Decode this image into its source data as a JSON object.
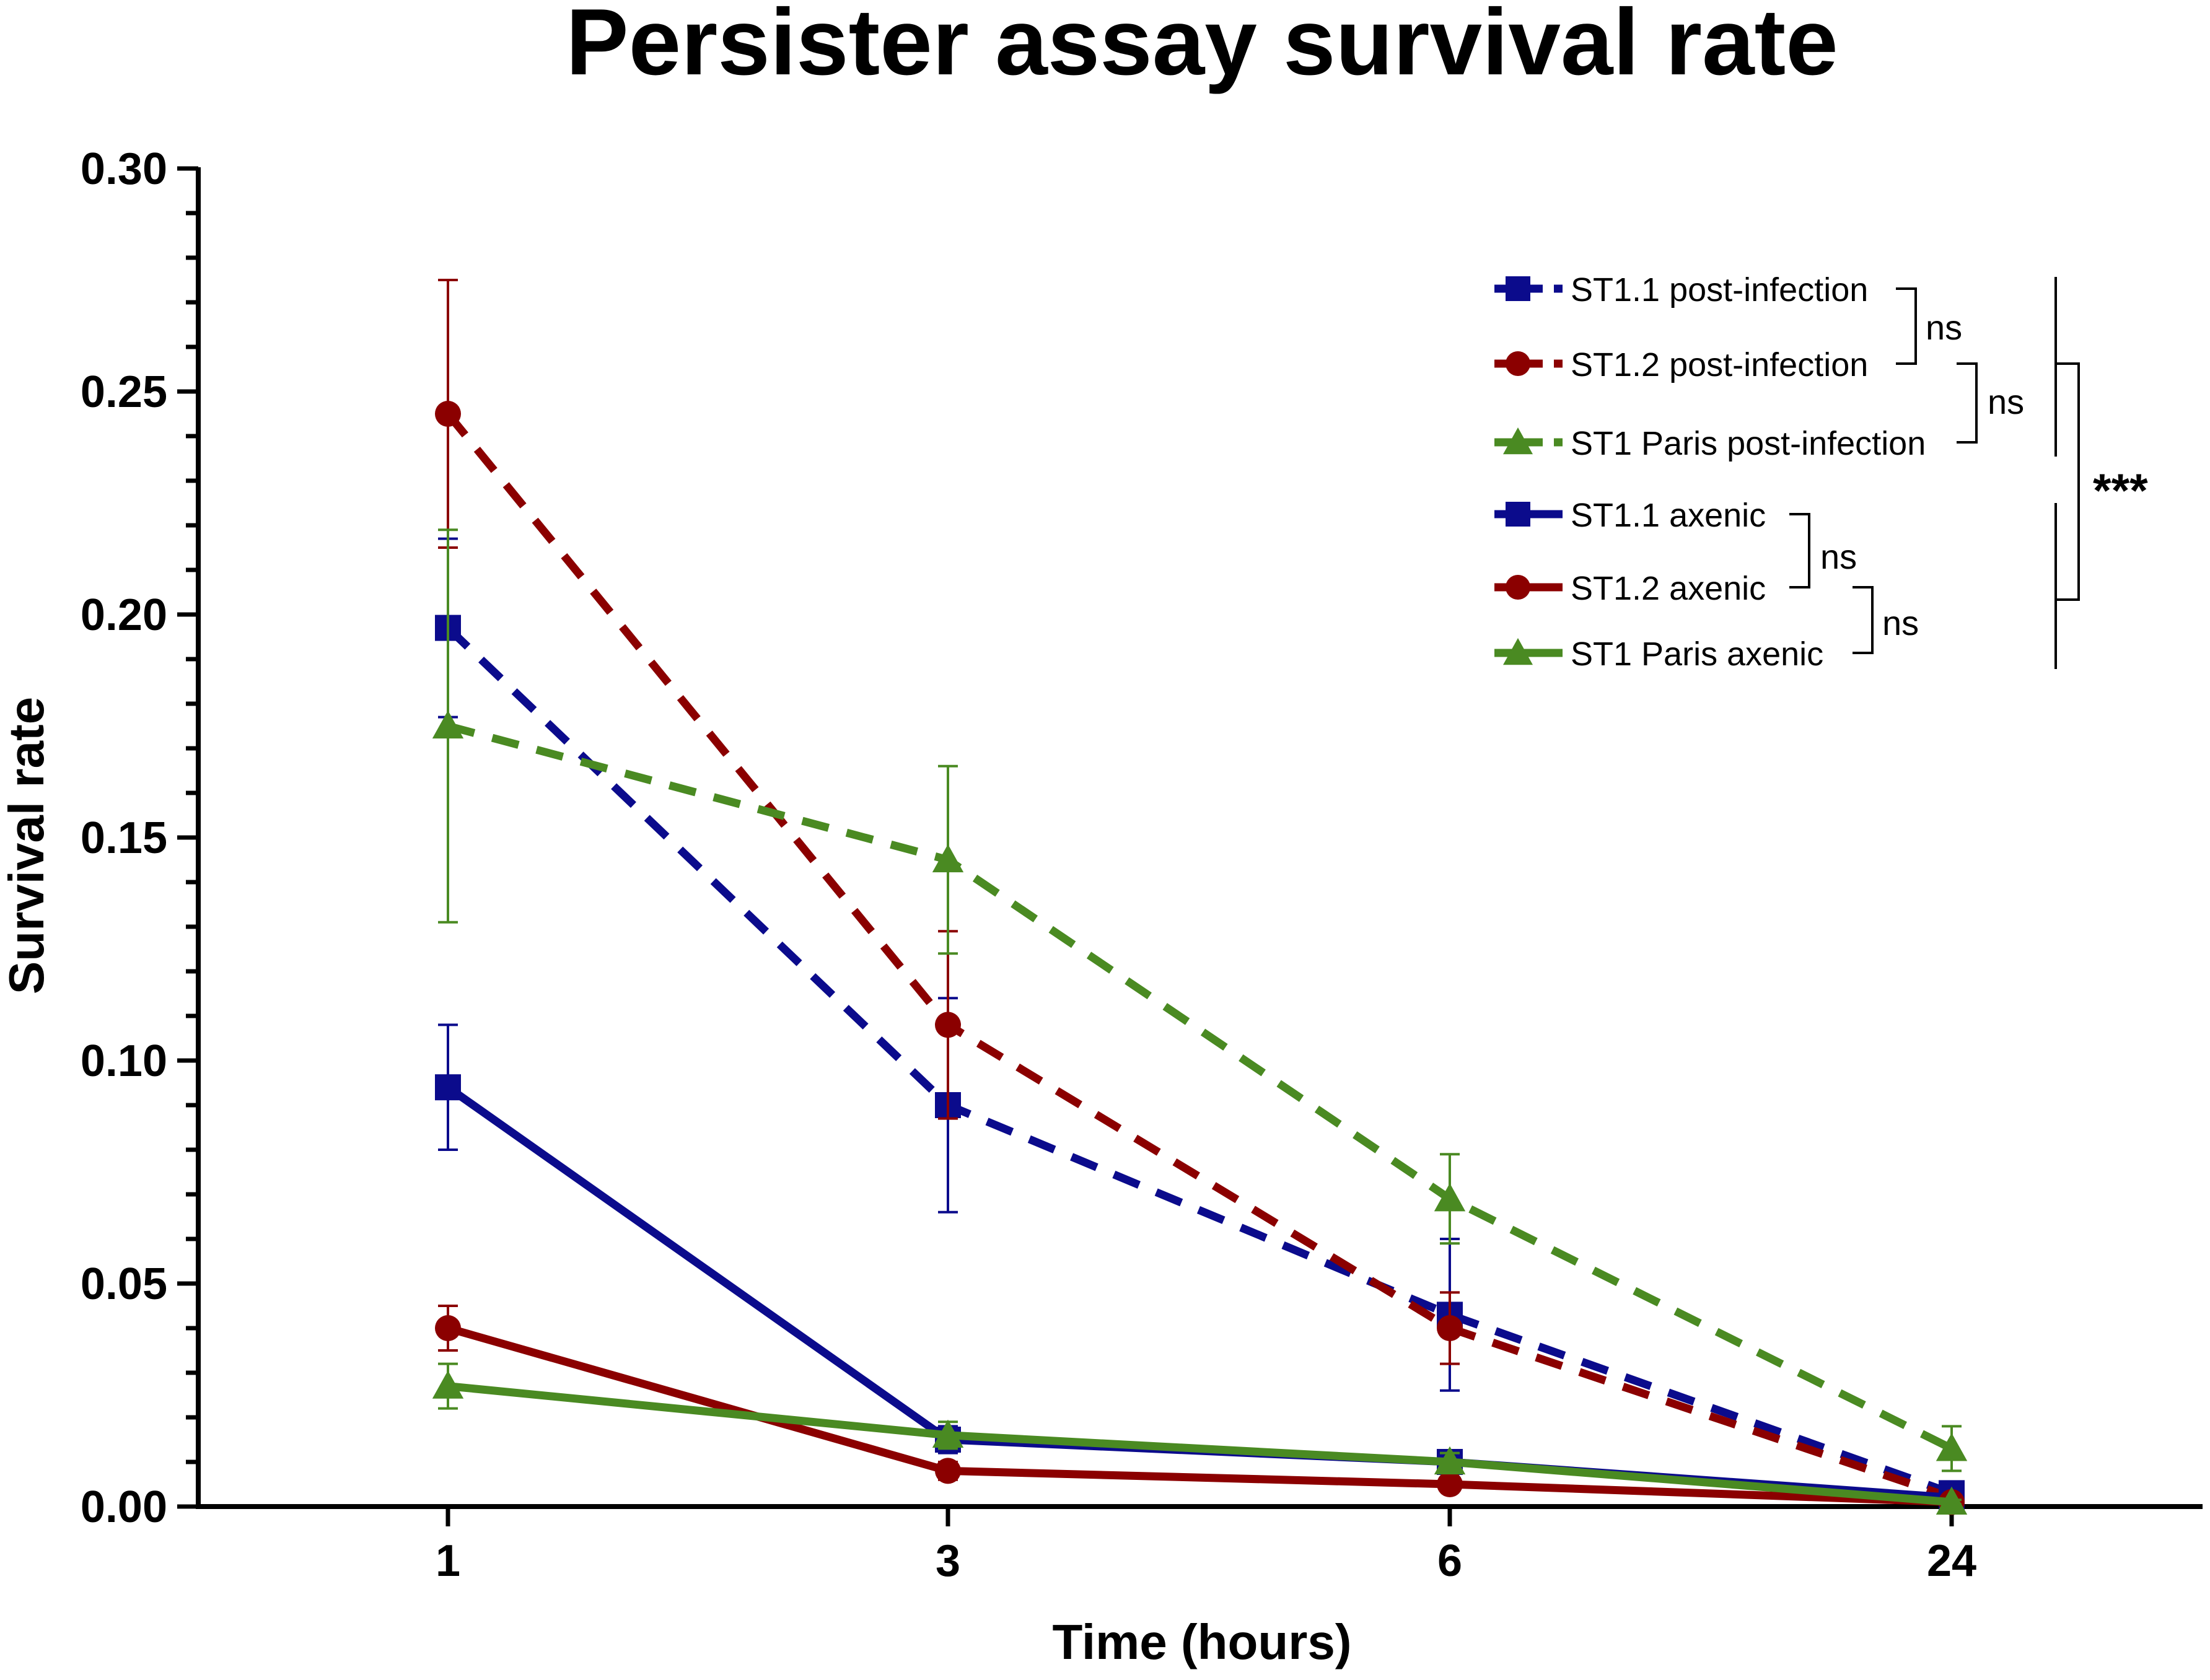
{
  "chart_data": {
    "type": "line",
    "title": "Persister assay survival rate",
    "xlabel": "Time (hours)",
    "ylabel": "Survival rate",
    "categories": [
      "1",
      "3",
      "6",
      "24"
    ],
    "ylim": [
      0,
      0.3
    ],
    "yticks": [
      "0.00",
      "0.05",
      "0.10",
      "0.15",
      "0.20",
      "0.25",
      "0.30"
    ],
    "ytick_values": [
      0,
      0.05,
      0.1,
      0.15,
      0.2,
      0.25,
      0.3
    ],
    "grid": false,
    "legend_position": "top-right",
    "series": [
      {
        "name": "ST1.1 post-infection",
        "color": "#0b0b8c",
        "dash": "dashed",
        "marker": "square",
        "values": [
          0.197,
          0.09,
          0.043,
          0.003
        ],
        "errors": [
          0.02,
          0.024,
          0.017,
          0.001
        ]
      },
      {
        "name": "ST1.2 post-infection",
        "color": "#8b0000",
        "dash": "dashed",
        "marker": "circle",
        "values": [
          0.245,
          0.108,
          0.04,
          0.002
        ],
        "errors": [
          0.03,
          0.021,
          0.008,
          0.001
        ]
      },
      {
        "name": "ST1 Paris post-infection",
        "color": "#4a8a22",
        "dash": "dashed",
        "marker": "triangle",
        "values": [
          0.175,
          0.145,
          0.069,
          0.013
        ],
        "errors": [
          0.044,
          0.021,
          0.01,
          0.005
        ]
      },
      {
        "name": "ST1.1 axenic",
        "color": "#0b0b8c",
        "dash": "solid",
        "marker": "square",
        "values": [
          0.094,
          0.015,
          0.01,
          0.002
        ],
        "errors": [
          0.014,
          0.003,
          0.002,
          0.001
        ]
      },
      {
        "name": "ST1.2 axenic",
        "color": "#8b0000",
        "dash": "solid",
        "marker": "circle",
        "values": [
          0.04,
          0.008,
          0.005,
          0.001
        ],
        "errors": [
          0.005,
          0.002,
          0.001,
          0.0005
        ]
      },
      {
        "name": "ST1 Paris axenic",
        "color": "#4a8a22",
        "dash": "solid",
        "marker": "triangle",
        "values": [
          0.027,
          0.016,
          0.01,
          0.001
        ],
        "errors": [
          0.005,
          0.003,
          0.002,
          0.0005
        ]
      }
    ],
    "annotations": {
      "ns_1": "ns",
      "ns_2": "ns",
      "ns_3": "ns",
      "ns_4": "ns",
      "significance_overall": "***"
    }
  }
}
